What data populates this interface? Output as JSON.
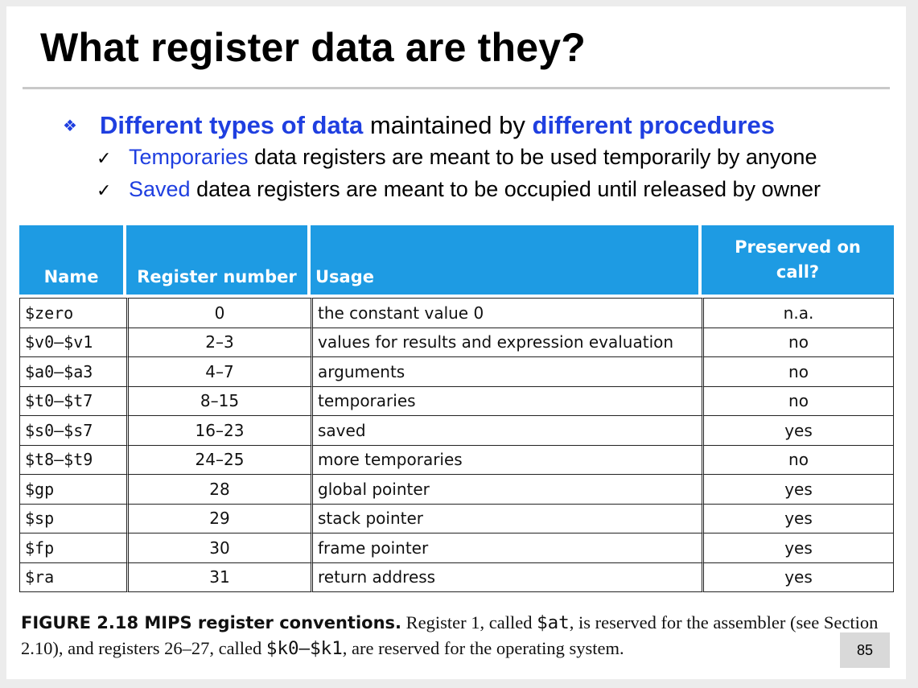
{
  "title": "What register data are they?",
  "bullet": {
    "part1": "Different types of data",
    "part2": " maintained by ",
    "part3": "different procedures"
  },
  "subs": [
    {
      "highlight": "Temporaries",
      "rest": " data registers are meant to be used temporarily by anyone"
    },
    {
      "highlight": "Saved",
      "rest": " datea registers are meant to be occupied until released by owner"
    }
  ],
  "table": {
    "headers": {
      "name": "Name",
      "number": "Register number",
      "usage": "Usage",
      "preserved_line1": "Preserved on",
      "preserved_line2": "call?"
    },
    "rows": [
      {
        "name": "$zero",
        "number": "0",
        "usage": "the constant value 0",
        "preserved": "n.a."
      },
      {
        "name": "$v0–$v1",
        "number": "2–3",
        "usage": "values for results and expression evaluation",
        "preserved": "no"
      },
      {
        "name": "$a0–$a3",
        "number": "4–7",
        "usage": "arguments",
        "preserved": "no"
      },
      {
        "name": "$t0–$t7",
        "number": "8–15",
        "usage": "temporaries",
        "preserved": "no"
      },
      {
        "name": "$s0–$s7",
        "number": "16–23",
        "usage": "saved",
        "preserved": "yes"
      },
      {
        "name": "$t8–$t9",
        "number": "24–25",
        "usage": "more temporaries",
        "preserved": "no"
      },
      {
        "name": "$gp",
        "number": "28",
        "usage": "global pointer",
        "preserved": "yes"
      },
      {
        "name": "$sp",
        "number": "29",
        "usage": "stack pointer",
        "preserved": "yes"
      },
      {
        "name": "$fp",
        "number": "30",
        "usage": "frame pointer",
        "preserved": "yes"
      },
      {
        "name": "$ra",
        "number": "31",
        "usage": "return address",
        "preserved": "yes"
      }
    ]
  },
  "caption": {
    "label": "FIGURE 2.18   MIPS register conventions.",
    "t1": " Register 1, called ",
    "at": "$at",
    "t2": ", is reserved for the assembler (see Section 2.10), and registers 26–27, called ",
    "k": "$k0–$k1",
    "t3": ", are reserved for the operating system."
  },
  "page_number": "85",
  "colors": {
    "accent_blue": "#1f3fe0",
    "header_bg": "#1e9be3"
  }
}
